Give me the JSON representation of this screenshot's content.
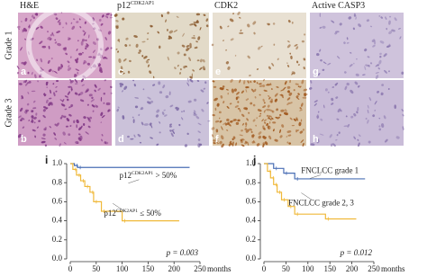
{
  "figure": {
    "columns": [
      {
        "text": "H&E"
      },
      {
        "text": "p12",
        "sup": "CDK2AP1"
      },
      {
        "text": "CDK2"
      },
      {
        "text": "Active CASP3"
      }
    ],
    "rows": [
      "Grade 1",
      "Grade 3"
    ],
    "panels": [
      "a",
      "c",
      "e",
      "g",
      "b",
      "d",
      "f",
      "h"
    ]
  },
  "chart_data": [
    {
      "type": "line",
      "drawstyle": "steps-post",
      "panel": "i",
      "x_label": "months",
      "annotation": "p = 0.003",
      "xlim": [
        0,
        250
      ],
      "xticks": [
        0,
        50,
        100,
        150,
        200,
        250
      ],
      "ylim": [
        0,
        1
      ],
      "yticks": [
        {
          "value": 0,
          "label": "0.0"
        },
        {
          "value": 0.2,
          "label": "0.2"
        },
        {
          "value": 0.4,
          "label": "0.4"
        },
        {
          "value": 0.6,
          "label": "0.6"
        },
        {
          "value": 0.8,
          "label": "0.8"
        },
        {
          "value": 1,
          "label": "1.0"
        }
      ],
      "series": [
        {
          "label": {
            "text": "p12",
            "sup": "CDK2AP1",
            "rest": " > 50%"
          },
          "color": "#4a6fb5",
          "x": [
            0,
            8,
            14,
            230
          ],
          "values": [
            1,
            0.98,
            0.96,
            0.96
          ]
        },
        {
          "label": {
            "text": "p12",
            "sup": "CDK2AP1",
            "rest": " ≤ 50%"
          },
          "color": "#f0b93a",
          "x": [
            0,
            5,
            12,
            20,
            28,
            38,
            45,
            60,
            100,
            210
          ],
          "values": [
            1,
            0.94,
            0.88,
            0.82,
            0.76,
            0.7,
            0.6,
            0.5,
            0.4,
            0.4
          ]
        }
      ]
    },
    {
      "type": "line",
      "drawstyle": "steps-post",
      "panel": "j",
      "x_label": "months",
      "annotation": "p = 0.012",
      "xlim": [
        0,
        250
      ],
      "xticks": [
        0,
        50,
        100,
        150,
        200,
        250
      ],
      "ylim": [
        0,
        1
      ],
      "yticks": [
        {
          "value": 0,
          "label": "0.0"
        },
        {
          "value": 0.2,
          "label": "0.2"
        },
        {
          "value": 0.4,
          "label": "0.4"
        },
        {
          "value": 0.6,
          "label": "0.6"
        },
        {
          "value": 0.8,
          "label": "0.8"
        },
        {
          "value": 1,
          "label": "1.0"
        }
      ],
      "series": [
        {
          "label": {
            "text": "FNCLCC grade 1"
          },
          "color": "#4a6fb5",
          "x": [
            0,
            22,
            45,
            70,
            230
          ],
          "values": [
            1,
            0.95,
            0.9,
            0.84,
            0.84
          ]
        },
        {
          "label": {
            "text": "FNCLCC grade 2, 3"
          },
          "color": "#f0b93a",
          "x": [
            0,
            8,
            15,
            22,
            30,
            40,
            55,
            70,
            140,
            210
          ],
          "values": [
            1,
            0.92,
            0.85,
            0.78,
            0.7,
            0.62,
            0.55,
            0.47,
            0.42,
            0.42
          ]
        }
      ]
    }
  ]
}
